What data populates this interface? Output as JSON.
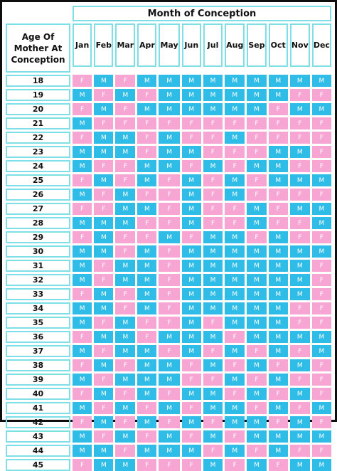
{
  "header": {
    "month_title": "Month of Conception",
    "age_title": "Age Of Mother At Conception"
  },
  "months": [
    "Jan",
    "Feb",
    "Mar",
    "Apr",
    "May",
    "Jun",
    "Jul",
    "Aug",
    "Sep",
    "Oct",
    "Nov",
    "Dec"
  ],
  "colors": {
    "female": "#f7a6d3",
    "male": "#2fbce6",
    "border": "#7fdfe6"
  },
  "rows": [
    {
      "age": "18",
      "values": [
        "F",
        "M",
        "F",
        "M",
        "M",
        "M",
        "M",
        "M",
        "M",
        "M",
        "M",
        "M"
      ]
    },
    {
      "age": "19",
      "values": [
        "M",
        "F",
        "M",
        "F",
        "M",
        "M",
        "M",
        "M",
        "M",
        "M",
        "F",
        "F"
      ]
    },
    {
      "age": "20",
      "values": [
        "F",
        "M",
        "F",
        "M",
        "M",
        "M",
        "M",
        "M",
        "M",
        "F",
        "M",
        "M"
      ]
    },
    {
      "age": "21",
      "values": [
        "M",
        "F",
        "F",
        "F",
        "F",
        "F",
        "F",
        "F",
        "F",
        "F",
        "F",
        "F"
      ]
    },
    {
      "age": "22",
      "values": [
        "F",
        "M",
        "M",
        "F",
        "M",
        "F",
        "F",
        "M",
        "F",
        "F",
        "F",
        "F"
      ]
    },
    {
      "age": "23",
      "values": [
        "M",
        "M",
        "M",
        "F",
        "M",
        "M",
        "F",
        "F",
        "F",
        "M",
        "M",
        "F"
      ]
    },
    {
      "age": "24",
      "values": [
        "M",
        "F",
        "F",
        "M",
        "M",
        "F",
        "M",
        "F",
        "M",
        "M",
        "F",
        "F"
      ]
    },
    {
      "age": "25",
      "values": [
        "F",
        "M",
        "F",
        "M",
        "F",
        "M",
        "F",
        "M",
        "F",
        "M",
        "M",
        "M"
      ]
    },
    {
      "age": "26",
      "values": [
        "M",
        "F",
        "M",
        "F",
        "F",
        "M",
        "F",
        "M",
        "F",
        "F",
        "F",
        "F"
      ]
    },
    {
      "age": "27",
      "values": [
        "F",
        "F",
        "M",
        "M",
        "F",
        "M",
        "F",
        "F",
        "M",
        "F",
        "M",
        "M"
      ]
    },
    {
      "age": "28",
      "values": [
        "M",
        "M",
        "M",
        "F",
        "F",
        "M",
        "F",
        "F",
        "M",
        "F",
        "F",
        "M"
      ]
    },
    {
      "age": "29",
      "values": [
        "F",
        "M",
        "F",
        "F",
        "M",
        "F",
        "M",
        "M",
        "F",
        "M",
        "F",
        "F"
      ]
    },
    {
      "age": "30",
      "values": [
        "M",
        "M",
        "F",
        "M",
        "F",
        "M",
        "M",
        "M",
        "M",
        "M",
        "M",
        "M"
      ]
    },
    {
      "age": "31",
      "values": [
        "M",
        "F",
        "M",
        "M",
        "F",
        "M",
        "M",
        "M",
        "M",
        "M",
        "M",
        "F"
      ]
    },
    {
      "age": "32",
      "values": [
        "M",
        "F",
        "M",
        "M",
        "F",
        "M",
        "M",
        "M",
        "M",
        "M",
        "M",
        "F"
      ]
    },
    {
      "age": "33",
      "values": [
        "F",
        "M",
        "F",
        "M",
        "F",
        "M",
        "M",
        "M",
        "M",
        "M",
        "M",
        "F"
      ]
    },
    {
      "age": "34",
      "values": [
        "M",
        "M",
        "F",
        "M",
        "F",
        "M",
        "M",
        "M",
        "M",
        "M",
        "F",
        "F"
      ]
    },
    {
      "age": "35",
      "values": [
        "M",
        "F",
        "M",
        "F",
        "F",
        "M",
        "F",
        "M",
        "M",
        "M",
        "F",
        "F"
      ]
    },
    {
      "age": "36",
      "values": [
        "F",
        "M",
        "M",
        "F",
        "M",
        "M",
        "M",
        "F",
        "M",
        "M",
        "M",
        "M"
      ]
    },
    {
      "age": "37",
      "values": [
        "M",
        "F",
        "M",
        "M",
        "F",
        "M",
        "F",
        "M",
        "F",
        "M",
        "F",
        "M"
      ]
    },
    {
      "age": "38",
      "values": [
        "F",
        "M",
        "F",
        "M",
        "M",
        "F",
        "M",
        "F",
        "M",
        "F",
        "M",
        "F"
      ]
    },
    {
      "age": "39",
      "values": [
        "M",
        "F",
        "M",
        "M",
        "M",
        "F",
        "F",
        "M",
        "F",
        "M",
        "F",
        "F"
      ]
    },
    {
      "age": "40",
      "values": [
        "F",
        "M",
        "F",
        "M",
        "F",
        "M",
        "M",
        "F",
        "M",
        "F",
        "M",
        "F"
      ]
    },
    {
      "age": "41",
      "values": [
        "M",
        "F",
        "M",
        "F",
        "M",
        "F",
        "M",
        "M",
        "F",
        "M",
        "F",
        "M"
      ]
    },
    {
      "age": "42",
      "values": [
        "F",
        "M",
        "F",
        "M",
        "F",
        "M",
        "F",
        "M",
        "M",
        "F",
        "M",
        "F"
      ]
    },
    {
      "age": "43",
      "values": [
        "M",
        "F",
        "M",
        "F",
        "M",
        "F",
        "M",
        "F",
        "M",
        "M",
        "M",
        "M"
      ]
    },
    {
      "age": "44",
      "values": [
        "M",
        "M",
        "F",
        "M",
        "M",
        "M",
        "F",
        "M",
        "F",
        "M",
        "F",
        "F"
      ]
    },
    {
      "age": "45",
      "values": [
        "F",
        "M",
        "M",
        "F",
        "F",
        "F",
        "M",
        "F",
        "M",
        "F",
        "M",
        "M"
      ]
    }
  ]
}
